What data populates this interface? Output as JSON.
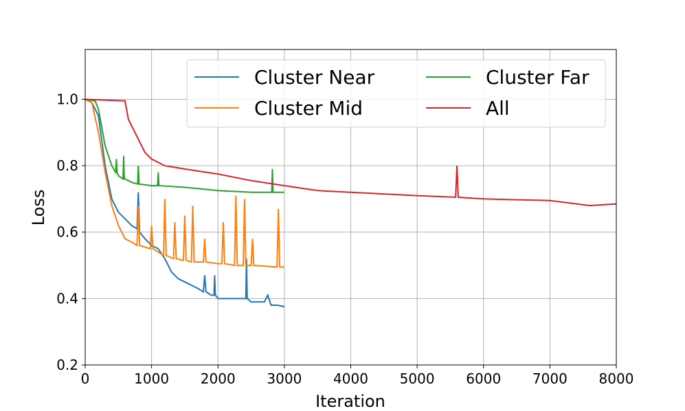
{
  "chart_data": {
    "type": "line",
    "title": "",
    "xlabel": "Iteration",
    "ylabel": "Loss",
    "xlim": [
      0,
      8000
    ],
    "ylim": [
      0.2,
      1.15
    ],
    "xticks": [
      0,
      1000,
      2000,
      3000,
      4000,
      5000,
      6000,
      7000,
      8000
    ],
    "yticks": [
      0.2,
      0.4,
      0.6,
      0.8,
      1.0
    ],
    "ytick_labels": [
      "0.2",
      "0.4",
      "0.6",
      "0.8",
      "1.0"
    ],
    "grid": true,
    "legend_placement": "top-right",
    "series": [
      {
        "name": "Cluster Near",
        "color": "#1f77b4",
        "x": [
          0,
          100,
          200,
          300,
          400,
          500,
          600,
          700,
          780,
          800,
          820,
          900,
          1000,
          1100,
          1200,
          1300,
          1400,
          1500,
          1600,
          1700,
          1780,
          1800,
          1820,
          1900,
          1940,
          1950,
          1960,
          2000,
          2100,
          2200,
          2300,
          2400,
          2420,
          2430,
          2440,
          2500,
          2600,
          2700,
          2750,
          2800,
          2900,
          3000
        ],
        "y": [
          1.0,
          0.99,
          0.95,
          0.8,
          0.7,
          0.66,
          0.64,
          0.62,
          0.61,
          0.72,
          0.6,
          0.58,
          0.56,
          0.55,
          0.52,
          0.48,
          0.46,
          0.45,
          0.44,
          0.43,
          0.42,
          0.47,
          0.42,
          0.41,
          0.41,
          0.47,
          0.41,
          0.4,
          0.4,
          0.4,
          0.4,
          0.4,
          0.4,
          0.52,
          0.4,
          0.39,
          0.39,
          0.39,
          0.41,
          0.38,
          0.38,
          0.375
        ]
      },
      {
        "name": "Cluster Mid",
        "color": "#ff7f0e",
        "x": [
          0,
          100,
          200,
          300,
          400,
          500,
          600,
          700,
          780,
          800,
          820,
          900,
          980,
          1000,
          1020,
          1100,
          1180,
          1200,
          1220,
          1330,
          1350,
          1370,
          1480,
          1500,
          1520,
          1600,
          1620,
          1640,
          1780,
          1800,
          1820,
          2000,
          2060,
          2080,
          2100,
          2250,
          2270,
          2290,
          2380,
          2400,
          2420,
          2500,
          2520,
          2540,
          2890,
          2910,
          2930,
          3000
        ],
        "y": [
          1.0,
          0.99,
          0.9,
          0.78,
          0.68,
          0.62,
          0.58,
          0.57,
          0.56,
          0.68,
          0.56,
          0.555,
          0.55,
          0.62,
          0.55,
          0.54,
          0.53,
          0.7,
          0.53,
          0.52,
          0.63,
          0.52,
          0.515,
          0.65,
          0.515,
          0.51,
          0.68,
          0.51,
          0.51,
          0.58,
          0.51,
          0.505,
          0.505,
          0.63,
          0.505,
          0.5,
          0.71,
          0.5,
          0.5,
          0.7,
          0.5,
          0.5,
          0.58,
          0.5,
          0.495,
          0.67,
          0.495,
          0.495
        ]
      },
      {
        "name": "Cluster Far",
        "color": "#2ca02c",
        "x": [
          0,
          150,
          200,
          300,
          400,
          460,
          470,
          480,
          500,
          570,
          580,
          590,
          600,
          700,
          790,
          800,
          810,
          1000,
          1090,
          1100,
          1110,
          1500,
          2000,
          2500,
          2810,
          2820,
          2830,
          3000
        ],
        "y": [
          1.0,
          0.995,
          0.97,
          0.86,
          0.8,
          0.78,
          0.82,
          0.78,
          0.77,
          0.76,
          0.83,
          0.76,
          0.76,
          0.75,
          0.745,
          0.8,
          0.745,
          0.74,
          0.74,
          0.78,
          0.74,
          0.735,
          0.725,
          0.72,
          0.72,
          0.79,
          0.72,
          0.72
        ]
      },
      {
        "name": "All",
        "color": "#d62728",
        "x": [
          0,
          600,
          650,
          700,
          800,
          900,
          1000,
          1200,
          1500,
          2000,
          2500,
          3000,
          3500,
          4000,
          5000,
          5580,
          5600,
          5620,
          6000,
          7000,
          7600,
          8000
        ],
        "y": [
          1.0,
          0.995,
          0.94,
          0.92,
          0.88,
          0.84,
          0.82,
          0.8,
          0.79,
          0.775,
          0.755,
          0.74,
          0.725,
          0.72,
          0.71,
          0.705,
          0.8,
          0.705,
          0.7,
          0.695,
          0.68,
          0.685
        ]
      }
    ]
  }
}
